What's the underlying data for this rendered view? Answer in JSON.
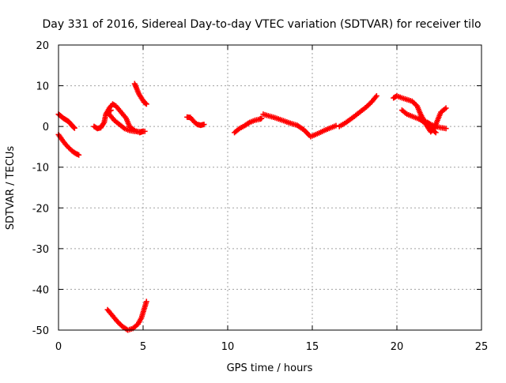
{
  "chart_data": {
    "type": "scatter",
    "title": "Day 331 of 2016, Sidereal Day-to-day VTEC variation (SDTVAR) for receiver tilo",
    "xlabel": "GPS time / hours",
    "ylabel": "SDTVAR / TECUs",
    "xlim": [
      0,
      25
    ],
    "ylim": [
      -50,
      20
    ],
    "xticks": [
      "0",
      "5",
      "10",
      "15",
      "20",
      "25"
    ],
    "yticks": [
      "20",
      "10",
      "0",
      "-10",
      "-20",
      "-30",
      "-40",
      "-50"
    ],
    "grid": true,
    "marker": "plus",
    "color": "#ff0000",
    "series": [
      {
        "x": [
          0,
          0.15,
          0.3,
          0.45,
          0.6,
          0.75,
          0.85,
          0.95
        ],
        "y": [
          3,
          2.5,
          2,
          1.6,
          1.2,
          0.5,
          0,
          -0.4
        ]
      },
      {
        "x": [
          0,
          0.2,
          0.4,
          0.6,
          0.8,
          1.0,
          1.2
        ],
        "y": [
          -2,
          -3.2,
          -4.3,
          -5.2,
          -6,
          -6.6,
          -7
        ]
      },
      {
        "x": [
          2.1,
          2.3,
          2.5,
          2.7,
          2.8,
          3.0,
          3.1
        ],
        "y": [
          0,
          -0.5,
          -0.3,
          1,
          3,
          3.8,
          4
        ]
      },
      {
        "x": [
          2.8,
          3.0,
          3.2,
          3.4,
          3.6,
          3.8,
          4.0,
          4.2,
          4.5,
          4.8,
          5.0
        ],
        "y": [
          3,
          4.5,
          5.5,
          5,
          4,
          3,
          2,
          0,
          -1,
          -1.5,
          -1.2
        ]
      },
      {
        "x": [
          2.9,
          3.1,
          3.3,
          3.6,
          3.9,
          4.2,
          4.5,
          4.8,
          5.1
        ],
        "y": [
          3.5,
          2.5,
          1.5,
          0.5,
          -0.5,
          -1,
          -1.2,
          -1.3,
          -1.2
        ]
      },
      {
        "x": [
          4.5,
          4.6,
          4.75,
          4.9,
          5.05,
          5.2
        ],
        "y": [
          10.5,
          9.5,
          8,
          7,
          6,
          5.5
        ]
      },
      {
        "x": [
          2.9,
          3.2,
          3.5,
          3.8,
          4.1,
          4.4,
          4.7,
          4.9,
          5.05,
          5.2
        ],
        "y": [
          -45,
          -46.5,
          -48,
          -49.2,
          -50,
          -49.6,
          -48.5,
          -47,
          -45,
          -43
        ]
      },
      {
        "x": [
          7.6,
          7.8,
          8.0,
          8.2,
          8.4,
          8.6
        ],
        "y": [
          2.3,
          2.2,
          1.2,
          0.5,
          0.3,
          0.5
        ]
      },
      {
        "x": [
          10.4,
          10.7,
          11.0,
          11.3,
          11.6,
          11.9,
          12.0
        ],
        "y": [
          -1.5,
          -0.5,
          0.2,
          1,
          1.5,
          1.8,
          2
        ]
      },
      {
        "x": [
          12.1,
          12.5,
          12.9,
          13.3,
          13.7,
          14.1,
          14.5,
          14.9,
          15.3,
          15.7,
          16.1,
          16.4
        ],
        "y": [
          3,
          2.5,
          2,
          1.4,
          0.8,
          0.3,
          -0.8,
          -2.5,
          -1.8,
          -1,
          -0.3,
          0.2
        ]
      },
      {
        "x": [
          16.6,
          17.0,
          17.4,
          17.8,
          18.2,
          18.5,
          18.8
        ],
        "y": [
          0,
          1,
          2.2,
          3.5,
          4.8,
          6,
          7.5
        ]
      },
      {
        "x": [
          19.8,
          20.0,
          20.3,
          20.6,
          20.9,
          21.2,
          21.4
        ],
        "y": [
          7,
          7.5,
          7,
          6.6,
          6.2,
          5,
          3
        ]
      },
      {
        "x": [
          20.3,
          20.6,
          20.9,
          21.2,
          21.5,
          21.8,
          22.0,
          22.3,
          22.6,
          22.9
        ],
        "y": [
          4,
          3,
          2.5,
          2,
          1.5,
          1,
          0.5,
          0,
          -0.3,
          -0.5
        ]
      },
      {
        "x": [
          21.4,
          21.6,
          21.8,
          22.0,
          22.2,
          22.4,
          22.6,
          22.9
        ],
        "y": [
          3,
          1.5,
          0,
          -1.3,
          -0.5,
          1.5,
          3.5,
          4.5
        ]
      },
      {
        "x": [
          21.3,
          21.6,
          21.9,
          22.1,
          22.3
        ],
        "y": [
          2,
          1,
          0,
          -0.8,
          -1.5
        ]
      }
    ]
  }
}
